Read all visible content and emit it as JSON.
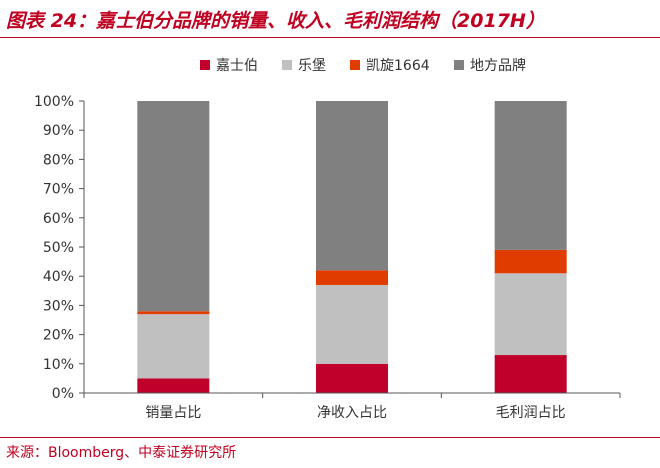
{
  "title": "图表 24：嘉士伯分品牌的销量、收入、毛利润结构（2017H）",
  "source": "来源：Bloomberg、中泰证券研究所",
  "chart_data": {
    "type": "bar",
    "stacked": true,
    "categories": [
      "销量占比",
      "净收入占比",
      "毛利润占比"
    ],
    "series": [
      {
        "name": "嘉士伯",
        "color": "#c0002a",
        "values": [
          5,
          10,
          13
        ]
      },
      {
        "name": "乐堡",
        "color": "#c0c0c0",
        "values": [
          22,
          27,
          28
        ]
      },
      {
        "name": "凯旋1664",
        "color": "#e03c00",
        "values": [
          1,
          5,
          8
        ]
      },
      {
        "name": "地方品牌",
        "color": "#808080",
        "values": [
          72,
          58,
          51
        ]
      }
    ],
    "ylim": [
      0,
      100
    ],
    "yticks": [
      "0%",
      "10%",
      "20%",
      "30%",
      "40%",
      "50%",
      "60%",
      "70%",
      "80%",
      "90%",
      "100%"
    ],
    "legend_position": "top",
    "grid": false
  }
}
